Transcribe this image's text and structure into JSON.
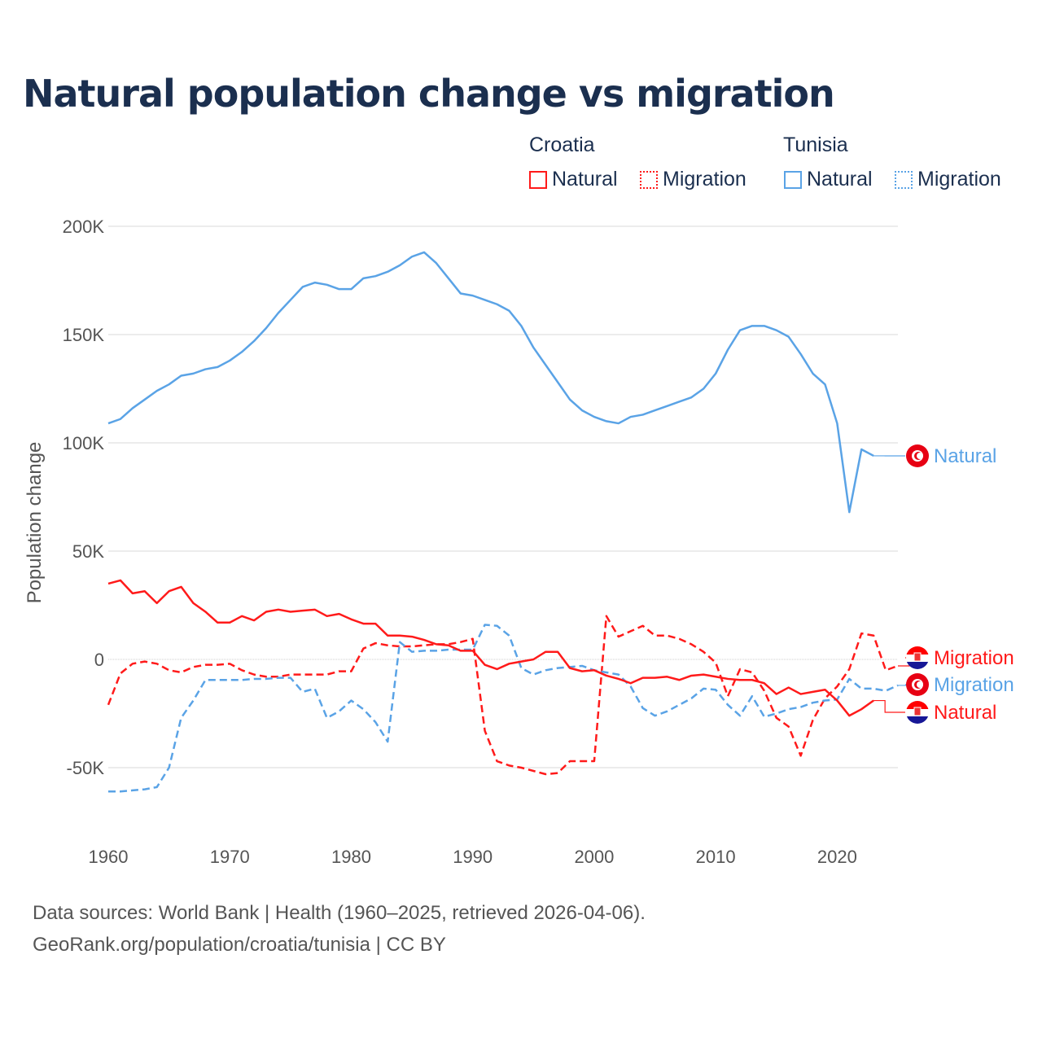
{
  "title": "Natural population change vs migration",
  "legend": {
    "groups": [
      {
        "name": "Croatia",
        "items": [
          "Natural",
          "Migration"
        ],
        "color": "#ff1a1a"
      },
      {
        "name": "Tunisia",
        "items": [
          "Natural",
          "Migration"
        ],
        "color": "#5aa3e6"
      }
    ]
  },
  "footer": {
    "line1": "Data sources: World Bank | Health (1960–2025, retrieved 2026-04-06).",
    "line2": "GeoRank.org/population/croatia/tunisia | CC BY"
  },
  "chart_data": {
    "type": "line",
    "title": "Natural population change vs migration",
    "xlabel": "",
    "ylabel": "Population change",
    "xlim": [
      1960,
      2025
    ],
    "ylim": [
      -70000,
      200000
    ],
    "x_ticks": [
      "1960",
      "1970",
      "1980",
      "1990",
      "2000",
      "2010",
      "2020"
    ],
    "y_ticks": [
      {
        "v": 200000,
        "label": "200K"
      },
      {
        "v": 150000,
        "label": "150K"
      },
      {
        "v": 100000,
        "label": "100K"
      },
      {
        "v": 50000,
        "label": "50K"
      },
      {
        "v": 0,
        "label": "0"
      },
      {
        "v": -50000,
        "label": "-50K"
      }
    ],
    "grid": true,
    "start_year": 1960,
    "units": "thousands",
    "series": [
      {
        "name": "Tunisia Natural",
        "label": "Natural",
        "country": "Tunisia",
        "color": "#5aa3e6",
        "dash": false,
        "values": [
          109,
          111,
          116,
          120,
          124,
          127,
          131,
          132,
          134,
          135,
          138,
          142,
          147,
          153,
          160,
          166,
          172,
          174,
          173,
          171,
          171,
          176,
          177,
          179,
          182,
          186,
          188,
          183,
          176,
          169,
          168,
          166,
          164,
          161,
          154,
          144,
          136,
          128,
          120,
          115,
          112,
          110,
          109,
          112,
          113,
          115,
          117,
          119,
          121,
          125,
          132,
          143,
          152,
          154,
          154,
          152,
          149,
          141,
          132,
          127,
          109,
          68,
          97,
          94
        ]
      },
      {
        "name": "Croatia Migration",
        "label": "Migration",
        "country": "Croatia",
        "color": "#ff1a1a",
        "dash": true,
        "values": [
          -21,
          -6.5,
          -2,
          -1,
          -2,
          -5,
          -6,
          -3.5,
          -2.5,
          -2.5,
          -2,
          -5,
          -7,
          -8,
          -8,
          -7,
          -7,
          -7,
          -7,
          -5.5,
          -5.5,
          5,
          7.5,
          6.5,
          6,
          6,
          6.5,
          7,
          7,
          8,
          9.5,
          -33,
          -47,
          -49,
          -50,
          -51.5,
          -53,
          -52.5,
          -47,
          -47,
          -47,
          20,
          10.5,
          13,
          15.5,
          11,
          11,
          9.5,
          7,
          3.5,
          -1.5,
          -17,
          -4.5,
          -6,
          -14.5,
          -27,
          -31,
          -44.5,
          -28,
          -18,
          -12.5,
          -4.5,
          12,
          11,
          -5,
          -3
        ]
      },
      {
        "name": "Tunisia Migration",
        "label": "Migration",
        "country": "Tunisia",
        "color": "#5aa3e6",
        "dash": true,
        "values": [
          -61,
          -61,
          -60.5,
          -60,
          -59,
          -50,
          -27,
          -19,
          -9.5,
          -9.5,
          -9.5,
          -9.5,
          -9,
          -9,
          -8.5,
          -8.5,
          -15,
          -13.5,
          -27,
          -24,
          -19,
          -23,
          -29,
          -38,
          8,
          3.5,
          4,
          4,
          4.5,
          4.5,
          4.5,
          16,
          15.5,
          11,
          -4,
          -7,
          -5,
          -4,
          -3.5,
          -3,
          -5,
          -6,
          -7,
          -12.5,
          -22.5,
          -26,
          -24,
          -21,
          -18,
          -13.5,
          -14,
          -21,
          -26,
          -17,
          -26.5,
          -25,
          -23,
          -22,
          -20,
          -19,
          -18.5,
          -9,
          -13.5,
          -13.5,
          -14.5,
          -12
        ]
      },
      {
        "name": "Croatia Natural",
        "label": "Natural",
        "country": "Croatia",
        "color": "#ff1a1a",
        "dash": false,
        "values": [
          35,
          36.5,
          30.5,
          31.5,
          26,
          31.5,
          33.5,
          26,
          22,
          17,
          17,
          20,
          18,
          22,
          23,
          22,
          22.5,
          23,
          20,
          21,
          18.5,
          16.5,
          16.5,
          11,
          11,
          10.5,
          9,
          7,
          6.5,
          4,
          4,
          -2.5,
          -4.5,
          -2,
          -1,
          0,
          3.5,
          3.5,
          -4,
          -5.5,
          -5,
          -7.5,
          -9,
          -11,
          -8.5,
          -8.5,
          -8,
          -9.5,
          -7.5,
          -7,
          -8,
          -9,
          -9.5,
          -9.5,
          -11,
          -16,
          -13,
          -16,
          -15,
          -14,
          -19,
          -26,
          -23,
          -19
        ]
      }
    ]
  }
}
